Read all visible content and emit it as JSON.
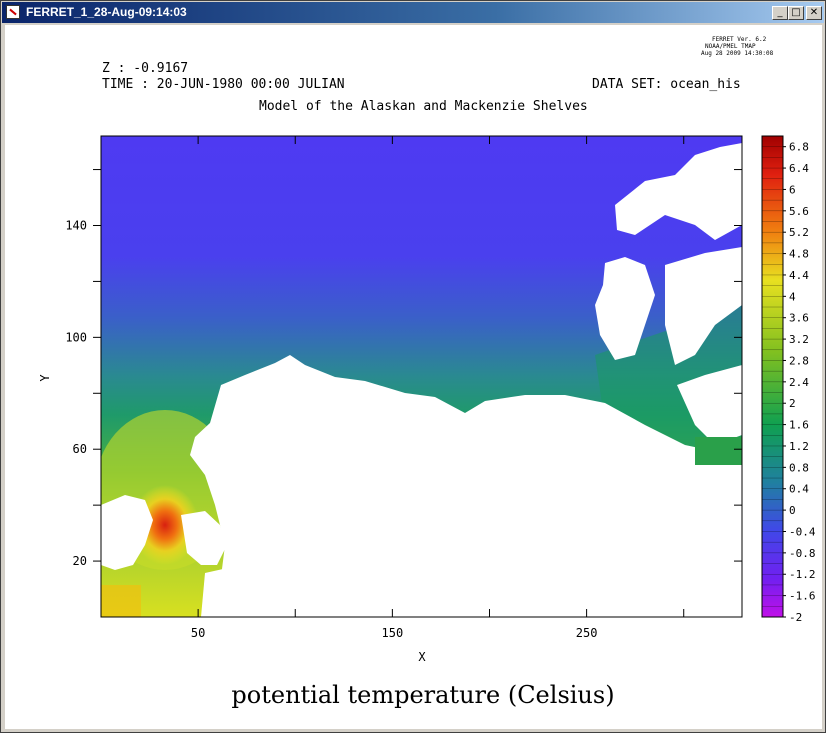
{
  "window": {
    "title": "FERRET_1_28-Aug-09:14:03",
    "buttons": {
      "minimize": "_",
      "maximize": "□",
      "close": "✕"
    }
  },
  "header": {
    "ferret_version": "FERRET Ver. 6.2",
    "institution": "NOAA/PMEL TMAP",
    "date": "Aug 28 2009 14:30:08",
    "z_label": "Z : -0.9167",
    "time_label": "TIME : 20-JUN-1980 00:00 JULIAN",
    "dataset_label": "DATA SET: ocean_his",
    "title": "Model of the Alaskan and Mackenzie Shelves"
  },
  "chart_data": {
    "type": "heatmap",
    "title": "Model of the Alaskan and Mackenzie Shelves",
    "xlabel": "X",
    "ylabel": "Y",
    "caption": "potential temperature (Celsius)",
    "xlim": [
      0,
      330
    ],
    "ylim": [
      0,
      172
    ],
    "x_tick_labels": [
      "50",
      "150",
      "250"
    ],
    "x_major_ticks": [
      50,
      100,
      150,
      200,
      250,
      300
    ],
    "x_labeled_ticks": [
      50,
      150,
      250
    ],
    "y_tick_labels": [
      "20",
      "60",
      "100",
      "140"
    ],
    "y_major_ticks": [
      20,
      40,
      60,
      80,
      100,
      120,
      140,
      160
    ],
    "y_labeled_ticks": [
      20,
      60,
      100,
      140
    ],
    "colorbar": {
      "min": -2.0,
      "max": 7.0,
      "labels": [
        "6.8",
        "6.4",
        "6",
        "5.6",
        "5.2",
        "4.8",
        "4.4",
        "4",
        "3.6",
        "3.2",
        "2.8",
        "2.4",
        "2",
        "1.6",
        "1.2",
        "0.8",
        "0.4",
        "0",
        "-0.4",
        "-0.8",
        "-1.2",
        "-1.6",
        "-2"
      ]
    },
    "land_mask_note": "",
    "grid": false
  },
  "colors": {
    "cold": "#5a3cf0",
    "cool": "#2a7ab0",
    "mid": "#1a9a50",
    "warm": "#e8e020",
    "hot": "#d02010",
    "land": "#ffffff"
  }
}
